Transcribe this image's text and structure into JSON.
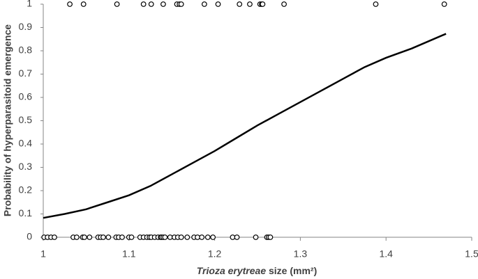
{
  "chart_data": {
    "type": "scatter",
    "xlabel": {
      "italic": "Trioza erytreae",
      "text": " size (mm²)"
    },
    "ylabel": "Probability of hyperparasitoid emergence",
    "xlim": [
      1,
      1.5
    ],
    "xticks": [
      1,
      1.1,
      1.2,
      1.3,
      1.4,
      1.5
    ],
    "ylim": [
      0,
      1
    ],
    "yticks": [
      0,
      0.1,
      0.2,
      0.3,
      0.4,
      0.5,
      0.6,
      0.7,
      0.8,
      0.9,
      1
    ],
    "grid": false,
    "series": [
      {
        "type": "scatter",
        "color": "#000000",
        "x": [
          1.031,
          1.047,
          1.086,
          1.117,
          1.126,
          1.14,
          1.156,
          1.159,
          1.161,
          1.188,
          1.204,
          1.229,
          1.241,
          1.253,
          1.255,
          1.256,
          1.281,
          1.388,
          1.468,
          1.001,
          1.005,
          1.009,
          1.013,
          1.035,
          1.039,
          1.046,
          1.048,
          1.054,
          1.064,
          1.067,
          1.07,
          1.076,
          1.085,
          1.088,
          1.092,
          1.1,
          1.103,
          1.113,
          1.117,
          1.121,
          1.124,
          1.126,
          1.13,
          1.134,
          1.137,
          1.138,
          1.14,
          1.142,
          1.148,
          1.153,
          1.157,
          1.161,
          1.168,
          1.176,
          1.18,
          1.185,
          1.192,
          1.198,
          1.221,
          1.226,
          1.248,
          1.261,
          1.263,
          1.265
        ],
        "values": [
          1,
          1,
          1,
          1,
          1,
          1,
          1,
          1,
          1,
          1,
          1,
          1,
          1,
          1,
          1,
          1,
          1,
          1,
          1,
          0,
          0,
          0,
          0,
          0,
          0,
          0,
          0,
          0,
          0,
          0,
          0,
          0,
          0,
          0,
          0,
          0,
          0,
          0,
          0,
          0,
          0,
          0,
          0,
          0,
          0,
          0,
          0,
          0,
          0,
          0,
          0,
          0,
          0,
          0,
          0,
          0,
          0,
          0,
          0,
          0,
          0,
          0,
          0,
          0
        ]
      },
      {
        "type": "line",
        "color": "#000000",
        "x": [
          1,
          1.025,
          1.05,
          1.075,
          1.1,
          1.125,
          1.15,
          1.175,
          1.2,
          1.225,
          1.25,
          1.275,
          1.3,
          1.325,
          1.35,
          1.375,
          1.4,
          1.43,
          1.47
        ],
        "values": [
          0.083,
          0.1,
          0.12,
          0.15,
          0.18,
          0.22,
          0.27,
          0.32,
          0.37,
          0.425,
          0.48,
          0.53,
          0.58,
          0.63,
          0.68,
          0.73,
          0.77,
          0.81,
          0.873
        ]
      }
    ]
  }
}
